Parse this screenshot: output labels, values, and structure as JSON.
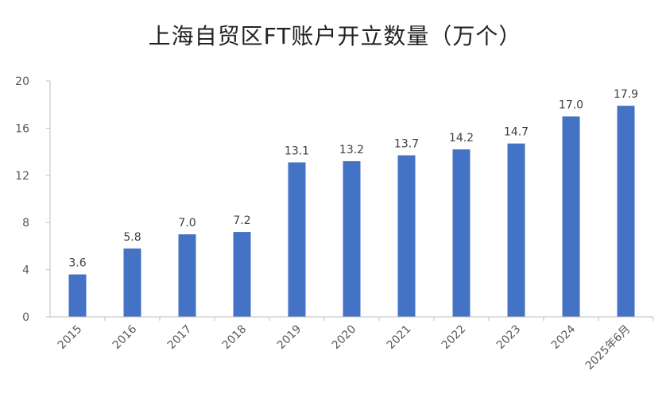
{
  "chart_data": {
    "type": "bar",
    "title": "上海自贸区FT账户开立数量（万个）",
    "categories": [
      "2015",
      "2016",
      "2017",
      "2018",
      "2019",
      "2020",
      "2021",
      "2022",
      "2023",
      "2024",
      "2025年6月"
    ],
    "values": [
      3.6,
      5.8,
      7.0,
      7.2,
      13.1,
      13.2,
      13.7,
      14.2,
      14.7,
      17.0,
      17.9
    ],
    "value_labels": [
      "3.6",
      "5.8",
      "7.0",
      "7.2",
      "13.1",
      "13.2",
      "13.7",
      "14.2",
      "14.7",
      "17.0",
      "17.9"
    ],
    "ylim": [
      0,
      20
    ],
    "yticks": [
      "0",
      "4",
      "8",
      "12",
      "16",
      "20"
    ],
    "xlabel": "",
    "ylabel": "",
    "grid": false,
    "legend": "none",
    "bar_color": "#4472C4"
  }
}
